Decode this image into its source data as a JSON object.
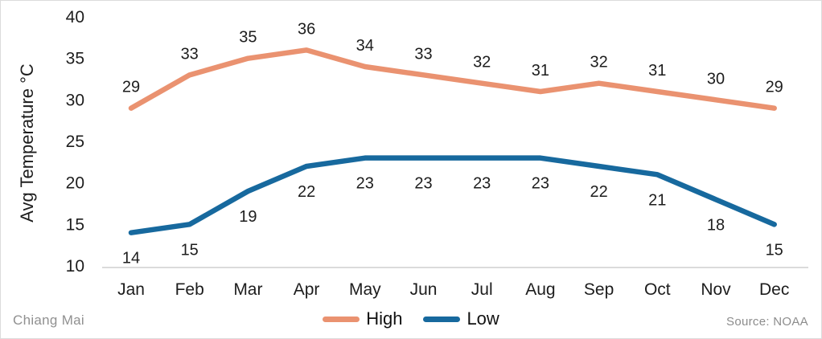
{
  "chart_data": {
    "type": "line",
    "title": "",
    "ylabel": "Avg Temperature °C",
    "xlabel": "",
    "categories": [
      "Jan",
      "Feb",
      "Mar",
      "Apr",
      "May",
      "Jun",
      "Jul",
      "Aug",
      "Sep",
      "Oct",
      "Nov",
      "Dec"
    ],
    "series": [
      {
        "name": "High",
        "color": "#EA9270",
        "values": [
          29,
          33,
          35,
          36,
          34,
          33,
          32,
          31,
          32,
          31,
          30,
          29
        ]
      },
      {
        "name": "Low",
        "color": "#17699E",
        "values": [
          14,
          15,
          19,
          22,
          23,
          23,
          23,
          23,
          22,
          21,
          18,
          15
        ]
      }
    ],
    "ylim": [
      10,
      40
    ],
    "yticks": [
      10,
      15,
      20,
      25,
      30,
      35,
      40
    ],
    "grid": false,
    "legend_position": "bottom",
    "data_labels": true
  },
  "footer": {
    "left": "Chiang Mai",
    "right": "Source: NOAA"
  },
  "colors": {
    "axis_line": "#cfcfcf",
    "text": "#1d1d1d",
    "muted": "#909090"
  }
}
